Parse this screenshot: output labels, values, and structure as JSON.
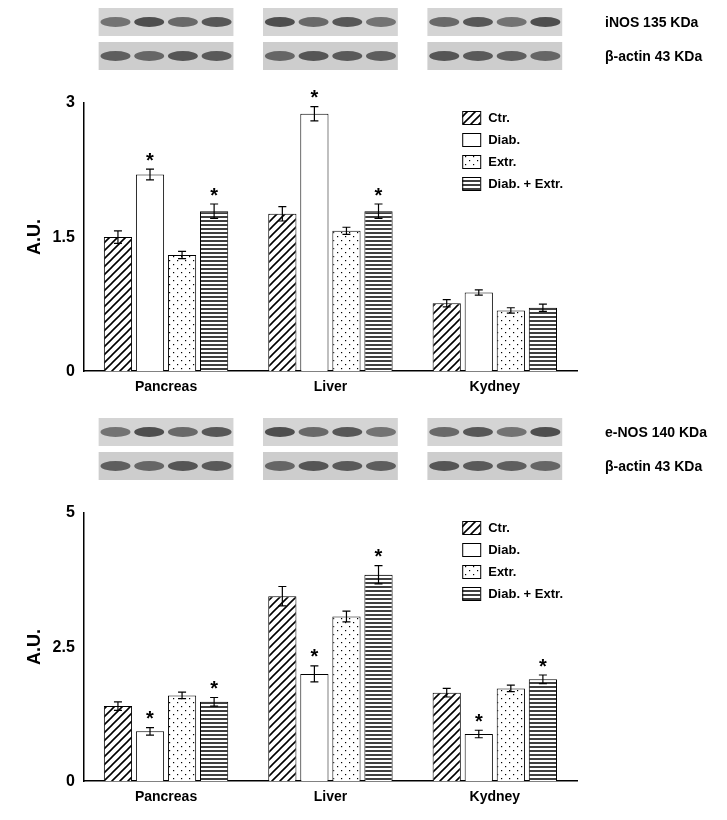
{
  "chart_data": [
    {
      "type": "bar",
      "y_label": "A.U.",
      "blot_labels": [
        "iNOS 135 KDa",
        "β-actin 43 KDa"
      ],
      "categories": [
        "Pancreas",
        "Liver",
        "Kydney"
      ],
      "series": [
        {
          "name": "Ctr.",
          "color": "#ffffff",
          "values": [
            1.5,
            1.76,
            0.76
          ],
          "errors": [
            0.07,
            0.08,
            0.04
          ],
          "significance": [
            null,
            null,
            null
          ]
        },
        {
          "name": "Diab.",
          "color": "#ffffff",
          "values": [
            2.2,
            2.88,
            0.88
          ],
          "errors": [
            0.06,
            0.08,
            0.03
          ],
          "significance": [
            "*",
            "*",
            null
          ]
        },
        {
          "name": "Extr.",
          "color": "#ffffff",
          "values": [
            1.3,
            1.57,
            0.68
          ],
          "errors": [
            0.04,
            0.04,
            0.03
          ],
          "significance": [
            null,
            null,
            null
          ]
        },
        {
          "name": "Diab. + Extr.",
          "color": "#ffffff",
          "values": [
            1.79,
            1.79,
            0.71
          ],
          "errors": [
            0.08,
            0.08,
            0.04
          ],
          "significance": [
            "*",
            "*",
            null
          ]
        }
      ],
      "ylim": [
        0,
        3
      ],
      "yticks": [
        0,
        1.5,
        3
      ],
      "grid": false,
      "legend": "upper right"
    },
    {
      "type": "bar",
      "y_label": "A.U.",
      "blot_labels": [
        "e-NOS 140 KDa",
        "β-actin 43 KDa"
      ],
      "categories": [
        "Pancreas",
        "Liver",
        "Kydney"
      ],
      "series": [
        {
          "name": "Ctr.",
          "color": "#ffffff",
          "values": [
            1.4,
            3.45,
            1.65
          ],
          "errors": [
            0.08,
            0.18,
            0.08
          ],
          "significance": [
            null,
            null,
            null
          ]
        },
        {
          "name": "Diab.",
          "color": "#ffffff",
          "values": [
            0.93,
            2.0,
            0.88
          ],
          "errors": [
            0.07,
            0.15,
            0.07
          ],
          "significance": [
            "*",
            "*",
            "*"
          ]
        },
        {
          "name": "Extr.",
          "color": "#ffffff",
          "values": [
            1.6,
            3.07,
            1.73
          ],
          "errors": [
            0.06,
            0.1,
            0.06
          ],
          "significance": [
            null,
            null,
            null
          ]
        },
        {
          "name": "Diab. + Extr.",
          "color": "#ffffff",
          "values": [
            1.48,
            3.85,
            1.9
          ],
          "errors": [
            0.08,
            0.17,
            0.08
          ],
          "significance": [
            "*",
            "*",
            "*"
          ]
        }
      ],
      "ylim": [
        0,
        5
      ],
      "yticks": [
        0,
        2.5,
        5
      ],
      "grid": false,
      "legend": "upper right"
    }
  ]
}
